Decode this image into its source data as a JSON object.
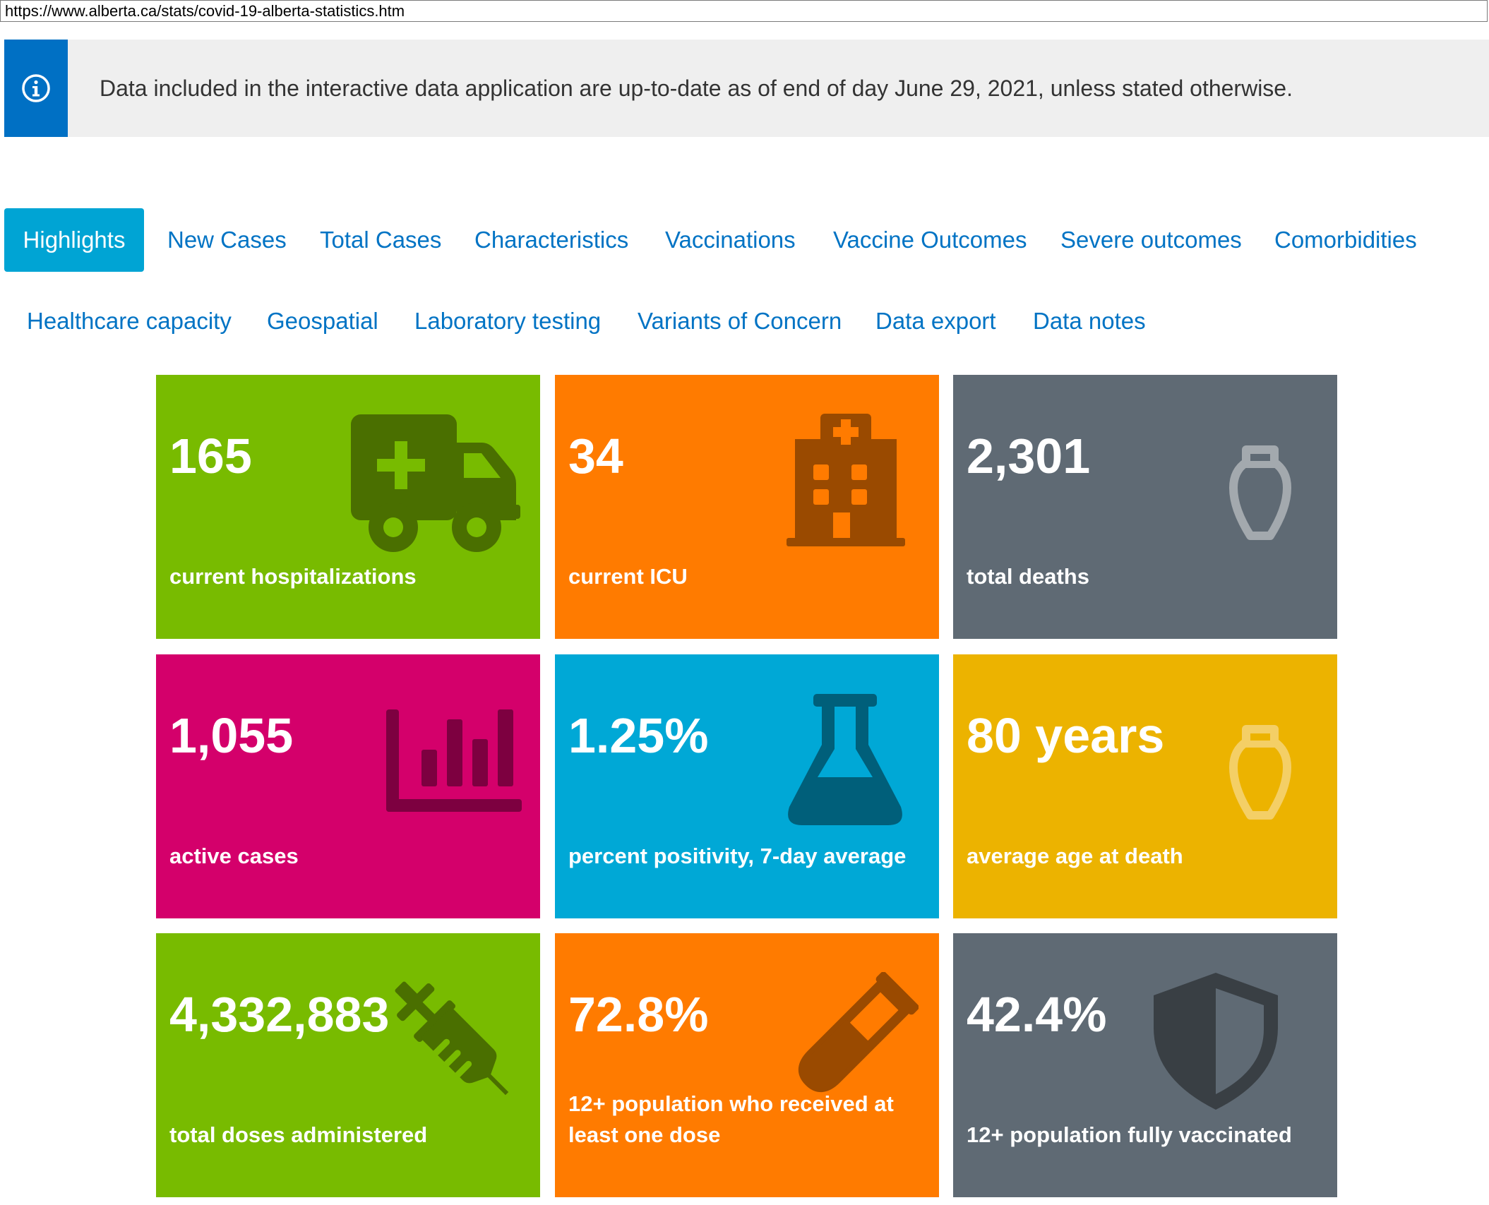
{
  "url": "https://www.alberta.ca/stats/covid-19-alberta-statistics.htm",
  "notice": {
    "icon": "info-icon",
    "text": "Data included in the interactive data application are up-to-date as of end of day June 29, 2021, unless stated otherwise."
  },
  "tabs": {
    "row1": [
      {
        "label": "Highlights",
        "active": true
      },
      {
        "label": "New Cases"
      },
      {
        "label": "Total Cases"
      },
      {
        "label": "Characteristics"
      },
      {
        "label": "Vaccinations"
      },
      {
        "label": "Vaccine Outcomes"
      },
      {
        "label": "Severe outcomes"
      },
      {
        "label": "Comorbidities"
      }
    ],
    "row2": [
      {
        "label": "Healthcare capacity"
      },
      {
        "label": "Geospatial"
      },
      {
        "label": "Laboratory testing"
      },
      {
        "label": "Variants of Concern"
      },
      {
        "label": "Data export"
      },
      {
        "label": "Data notes"
      }
    ]
  },
  "tiles": [
    {
      "value": "165",
      "label": "current hospitalizations",
      "icon": "ambulance-icon",
      "color": "#78bb00"
    },
    {
      "value": "34",
      "label": "current ICU",
      "icon": "hospital-icon",
      "color": "#ff7b00"
    },
    {
      "value": "2,301",
      "label": "total deaths",
      "icon": "urn-icon",
      "color": "#5f6a74"
    },
    {
      "value": "1,055",
      "label": "active cases",
      "icon": "bar-chart-icon",
      "color": "#d4006b"
    },
    {
      "value": "1.25%",
      "label": "percent positivity, 7-day average",
      "icon": "flask-icon",
      "color": "#00a8d6"
    },
    {
      "value": "80 years",
      "label": "average age at death",
      "icon": "urn-icon",
      "color": "#ecb300"
    },
    {
      "value": "4,332,883",
      "label": "total doses administered",
      "icon": "syringe-icon",
      "color": "#78bb00"
    },
    {
      "value": "72.8%",
      "label": "12+ population who received at least one dose",
      "icon": "test-tube-icon",
      "color": "#ff7b00"
    },
    {
      "value": "42.4%",
      "label": "12+ population fully vaccinated",
      "icon": "shield-icon",
      "color": "#5f6a74"
    }
  ]
}
